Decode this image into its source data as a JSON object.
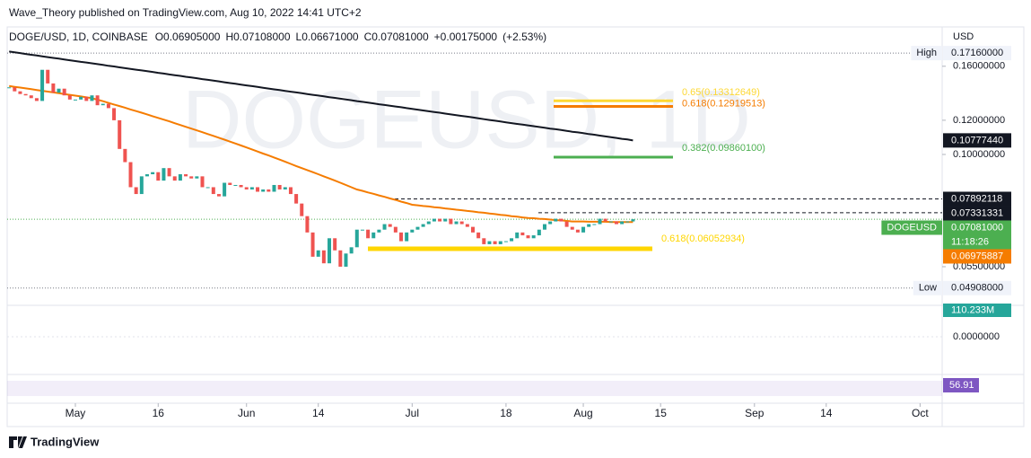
{
  "header": {
    "publisher": "Wave_Theory published on TradingView.com, Aug 10, 2022 14:41 UTC+2",
    "brand": "TradingView"
  },
  "chart_data": {
    "type": "candlestick",
    "title": "DOGE/USD, 1D, COINBASE",
    "legend": [
      {
        "value": 0.06905,
        "label": "O0.06905000"
      },
      {
        "value": 0.07108,
        "label": "H0.07108000"
      },
      {
        "value": 0.06671,
        "label": "L0.06671000"
      },
      {
        "value": 0.07081,
        "label": "C0.07081000"
      },
      {
        "value": 0.00175,
        "label": "+0.00175000"
      },
      {
        "value": 2.53,
        "label": "(+2.53%)"
      }
    ],
    "watermark": "DOGEUSD, 1D",
    "currency": "USD",
    "x": [
      "2022-04-19",
      "2022-04-20",
      "2022-04-21",
      "2022-04-22",
      "2022-04-23",
      "2022-04-24",
      "2022-04-25",
      "2022-04-26",
      "2022-04-27",
      "2022-04-28",
      "2022-04-29",
      "2022-04-30",
      "2022-05-01",
      "2022-05-02",
      "2022-05-03",
      "2022-05-04",
      "2022-05-05",
      "2022-05-06",
      "2022-05-07",
      "2022-05-08",
      "2022-05-09",
      "2022-05-10",
      "2022-05-11",
      "2022-05-12",
      "2022-05-13",
      "2022-05-14",
      "2022-05-15",
      "2022-05-16",
      "2022-05-17",
      "2022-05-18",
      "2022-05-19",
      "2022-05-20",
      "2022-05-21",
      "2022-05-22",
      "2022-05-23",
      "2022-05-24",
      "2022-05-25",
      "2022-05-26",
      "2022-05-27",
      "2022-05-28",
      "2022-05-29",
      "2022-05-30",
      "2022-05-31",
      "2022-06-01",
      "2022-06-02",
      "2022-06-03",
      "2022-06-04",
      "2022-06-05",
      "2022-06-06",
      "2022-06-07",
      "2022-06-08",
      "2022-06-09",
      "2022-06-10",
      "2022-06-11",
      "2022-06-12",
      "2022-06-13",
      "2022-06-14",
      "2022-06-15",
      "2022-06-16",
      "2022-06-17",
      "2022-06-18",
      "2022-06-19",
      "2022-06-20",
      "2022-06-21",
      "2022-06-22",
      "2022-06-23",
      "2022-06-24",
      "2022-06-25",
      "2022-06-26",
      "2022-06-27",
      "2022-06-28",
      "2022-06-29",
      "2022-06-30",
      "2022-07-01",
      "2022-07-02",
      "2022-07-03",
      "2022-07-04",
      "2022-07-05",
      "2022-07-06",
      "2022-07-07",
      "2022-07-08",
      "2022-07-09",
      "2022-07-10",
      "2022-07-11",
      "2022-07-12",
      "2022-07-13",
      "2022-07-14",
      "2022-07-15",
      "2022-07-16",
      "2022-07-17",
      "2022-07-18",
      "2022-07-19",
      "2022-07-20",
      "2022-07-21",
      "2022-07-22",
      "2022-07-23",
      "2022-07-24",
      "2022-07-25",
      "2022-07-26",
      "2022-07-27",
      "2022-07-28",
      "2022-07-29",
      "2022-07-30",
      "2022-07-31",
      "2022-08-01",
      "2022-08-02",
      "2022-08-03",
      "2022-08-04",
      "2022-08-05",
      "2022-08-06",
      "2022-08-07",
      "2022-08-08",
      "2022-08-09",
      "2022-08-10"
    ],
    "values": [
      0.143,
      0.14,
      0.138,
      0.137,
      0.135,
      0.133,
      0.157,
      0.146,
      0.139,
      0.142,
      0.137,
      0.134,
      0.134,
      0.136,
      0.133,
      0.137,
      0.13,
      0.131,
      0.128,
      0.12,
      0.103,
      0.096,
      0.084,
      0.081,
      0.089,
      0.09,
      0.091,
      0.087,
      0.093,
      0.089,
      0.087,
      0.09,
      0.089,
      0.088,
      0.089,
      0.084,
      0.084,
      0.081,
      0.08,
      0.086,
      0.085,
      0.085,
      0.084,
      0.083,
      0.084,
      0.082,
      0.083,
      0.082,
      0.085,
      0.083,
      0.084,
      0.081,
      0.077,
      0.072,
      0.066,
      0.058,
      0.06,
      0.056,
      0.064,
      0.06,
      0.055,
      0.059,
      0.061,
      0.067,
      0.067,
      0.064,
      0.066,
      0.067,
      0.069,
      0.068,
      0.066,
      0.063,
      0.066,
      0.067,
      0.068,
      0.069,
      0.07,
      0.071,
      0.07,
      0.071,
      0.069,
      0.07,
      0.069,
      0.068,
      0.066,
      0.064,
      0.062,
      0.063,
      0.062,
      0.063,
      0.063,
      0.064,
      0.066,
      0.065,
      0.064,
      0.065,
      0.067,
      0.069,
      0.07,
      0.071,
      0.07,
      0.068,
      0.067,
      0.066,
      0.068,
      0.069,
      0.069,
      0.071,
      0.07,
      0.07,
      0.069,
      0.07,
      0.07,
      0.07081
    ],
    "up_color": "#26a69a",
    "down_color": "#ef5350",
    "lines": [
      {
        "color": "#131722",
        "values": [
          0.173,
          0.1723,
          0.1716,
          0.1708,
          0.1701,
          0.1694,
          0.1687,
          0.168,
          0.1673,
          0.1666,
          0.1659,
          0.1652,
          0.1645,
          0.1638,
          0.1632,
          0.1625,
          0.1618,
          0.1611,
          0.1604,
          0.1598,
          0.1591,
          0.1584,
          0.1578,
          0.1571,
          0.1565,
          0.1558,
          0.1552,
          0.1545,
          0.1539,
          0.1532,
          0.1526,
          0.152,
          0.1513,
          0.1507,
          0.1501,
          0.1494,
          0.1488,
          0.1482,
          0.1476,
          0.1469,
          0.1463,
          0.1457,
          0.1451,
          0.1445,
          0.1439,
          0.1433,
          0.1427,
          0.1421,
          0.1415,
          0.1409,
          0.1403,
          0.1397,
          0.1392,
          0.1386,
          0.138,
          0.1374,
          0.1369,
          0.1363,
          0.1357,
          0.1352,
          0.1346,
          0.134,
          0.1335,
          0.1329,
          0.1324,
          0.1318,
          0.1313,
          0.1307,
          0.1302,
          0.1296,
          0.1291,
          0.1286,
          0.128,
          0.1275,
          0.127,
          0.1264,
          0.1259,
          0.1254,
          0.1249,
          0.1243,
          0.1238,
          0.1233,
          0.1228,
          0.1223,
          0.1218,
          0.1213,
          0.1207,
          0.1202,
          0.1197,
          0.1192,
          0.1187,
          0.1182,
          0.1177,
          0.1172,
          0.1168,
          0.1163,
          0.1158,
          0.1153,
          0.1148,
          0.1144,
          0.1139,
          0.1134,
          0.1129,
          0.1125,
          0.112,
          0.1115,
          0.1111,
          0.1106,
          0.1101,
          0.1097,
          0.1092,
          0.1087,
          0.1083,
          0.1077744
        ]
      },
      {
        "color": "#f57c00",
        "values": [
          0.144,
          0.1434,
          0.1428,
          0.1422,
          0.1416,
          0.141,
          0.1404,
          0.1398,
          0.1392,
          0.1386,
          0.138,
          0.1374,
          0.1368,
          0.1362,
          0.1356,
          0.135,
          0.1339,
          0.1328,
          0.1316,
          0.1305,
          0.1294,
          0.1283,
          0.1271,
          0.126,
          0.1249,
          0.1238,
          0.1226,
          0.1215,
          0.1204,
          0.1193,
          0.1181,
          0.117,
          0.1159,
          0.1148,
          0.1137,
          0.1126,
          0.1115,
          0.1104,
          0.1093,
          0.1082,
          0.1071,
          0.106,
          0.1049,
          0.1038,
          0.1027,
          0.1016,
          0.1005,
          0.0995,
          0.0984,
          0.0973,
          0.0962,
          0.0951,
          0.094,
          0.093,
          0.092,
          0.091,
          0.09,
          0.089,
          0.088,
          0.087,
          0.086,
          0.085,
          0.084,
          0.083,
          0.0824,
          0.0817,
          0.0811,
          0.0804,
          0.0798,
          0.0791,
          0.0785,
          0.0778,
          0.0772,
          0.0765,
          0.0763,
          0.076,
          0.0758,
          0.0755,
          0.0753,
          0.075,
          0.0748,
          0.0745,
          0.0743,
          0.074,
          0.0738,
          0.0735,
          0.0733,
          0.073,
          0.0728,
          0.0725,
          0.0723,
          0.072,
          0.0718,
          0.0715,
          0.0713,
          0.0712,
          0.071,
          0.0709,
          0.0707,
          0.0705,
          0.0704,
          0.0702,
          0.07,
          0.07,
          0.07,
          0.0699,
          0.0699,
          0.0699,
          0.0699,
          0.0698,
          0.0698,
          0.0698,
          0.0698,
          0.06975887
        ]
      }
    ],
    "xlim": [
      "2022-04-18",
      "2022-10-05"
    ],
    "xticks": [
      {
        "value": "2022-05-01",
        "label": "May"
      },
      {
        "value": "2022-05-16",
        "label": "16"
      },
      {
        "value": "2022-06-01",
        "label": "Jun"
      },
      {
        "value": "2022-06-14",
        "label": "14"
      },
      {
        "value": "2022-07-01",
        "label": "Jul"
      },
      {
        "value": "2022-07-18",
        "label": "18"
      },
      {
        "value": "2022-08-01",
        "label": "Aug"
      },
      {
        "value": "2022-08-15",
        "label": "15"
      },
      {
        "value": "2022-09-01",
        "label": "Sep"
      },
      {
        "value": "2022-09-14",
        "label": "14"
      },
      {
        "value": "2022-10-01",
        "label": "Oct"
      }
    ],
    "ylim": [
      0.04696,
      0.181
    ],
    "log_scale": true,
    "yticks": [
      {
        "value": 0.16,
        "label": "0.16000000"
      },
      {
        "value": 0.12,
        "label": "0.12000000"
      },
      {
        "value": 0.1,
        "label": "0.10000000"
      },
      {
        "value": 0.055,
        "label": "0.05500000"
      }
    ],
    "fib_levels": [
      {
        "value": 0.13312649,
        "label": "0.65(0.13312649)",
        "color": "#fdd835"
      },
      {
        "value": 0.12919513,
        "label": "0.618(0.12919513)",
        "color": "#f57c00"
      },
      {
        "value": 0.098601,
        "label": "0.382(0.09860100)",
        "color": "#4caf50"
      },
      {
        "value": 0.06052934,
        "label": "0.618(0.06052934)",
        "color": "#ffd600"
      }
    ],
    "dashed_levels": [
      0.07892118,
      0.07331331
    ],
    "price_labels": [
      {
        "value": 0.1716,
        "label": "0.17160000",
        "tag": "High",
        "bg": "#f0f3fa",
        "fg": "#131722"
      },
      {
        "value": 0.1077744,
        "label": "0.10777440",
        "bg": "#131722",
        "fg": "#ffffff"
      },
      {
        "value": 0.07892118,
        "label": "0.07892118",
        "bg": "#131722",
        "fg": "#ffffff"
      },
      {
        "value": 0.07331331,
        "label": "0.07331331",
        "bg": "#131722",
        "fg": "#ffffff"
      },
      {
        "value": 0.07081,
        "label": "0.07081000",
        "tag": "DOGEUSD",
        "sub": "11:18:26",
        "bg": "#4caf50",
        "fg": "#ffffff"
      },
      {
        "value": 0.06975887,
        "label": "0.06975887",
        "bg": "#f57c00",
        "fg": "#ffffff"
      },
      {
        "value": 0.04908,
        "label": "0.04908000",
        "tag": "Low",
        "bg": "#f0f3fa",
        "fg": "#131722"
      }
    ],
    "volume": {
      "value": 110233000,
      "label": "110.233M",
      "color": "#26a69a"
    },
    "macd": {
      "yticks": [
        {
          "value": 0,
          "label": "0.0000000"
        }
      ]
    },
    "rsi": {
      "value": 56.91,
      "color": "#7e57c2"
    }
  }
}
